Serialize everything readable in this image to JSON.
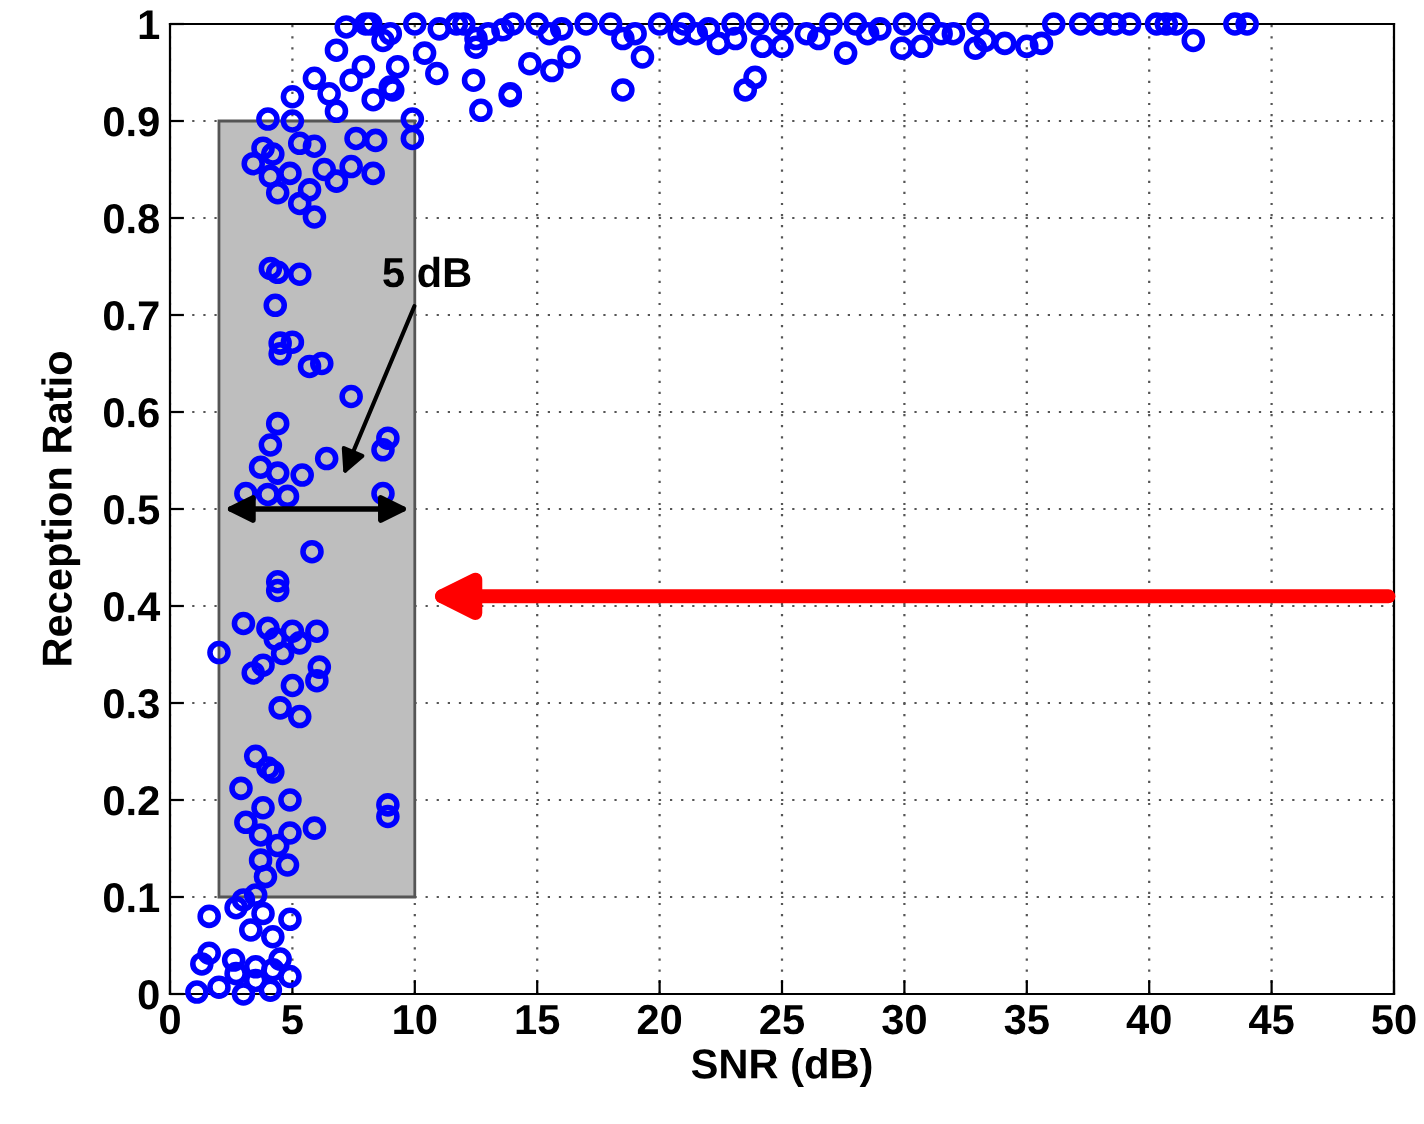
{
  "chart_data": {
    "type": "scatter",
    "xlabel": "SNR (dB)",
    "ylabel": "Reception Ratio",
    "xlim": [
      0,
      50
    ],
    "ylim": [
      0,
      1
    ],
    "xticks": [
      0,
      5,
      10,
      15,
      20,
      25,
      30,
      35,
      40,
      45,
      50
    ],
    "yticks": [
      0,
      0.1,
      0.2,
      0.3,
      0.4,
      0.5,
      0.6,
      0.7,
      0.8,
      0.9,
      1
    ],
    "grid": true,
    "marker": "circle",
    "bands": [
      {
        "axis": "x",
        "from": 2,
        "to": 10,
        "color": "#bebebe"
      }
    ],
    "annotations": [
      "5 dB"
    ],
    "series": [
      {
        "color": "#0000ff",
        "x": [
          36.1,
          37.2,
          38.0,
          38.6,
          39.2,
          40.3,
          40.7,
          41.1,
          43.5,
          44.0,
          41.8,
          32.9,
          35.0,
          35.6,
          34.1,
          33.3,
          29.9,
          30.7,
          27.6,
          25.0,
          24.2,
          23.5,
          23.9,
          22.4,
          23.1,
          18.5,
          19.3,
          13.9,
          14.7,
          15.6,
          16.3,
          20.8,
          8,
          9,
          10,
          11,
          12,
          13,
          14,
          15,
          16,
          17,
          18,
          19,
          20,
          21,
          22,
          23,
          24,
          25,
          26,
          27,
          28,
          29,
          30,
          31,
          32,
          33,
          12.5,
          15.5,
          18.5,
          21.5,
          26.5,
          28.5,
          31.5,
          7.2,
          8.2,
          6.8,
          5.9,
          5.0,
          4.0,
          9.9,
          9.9,
          5.0,
          6.8,
          8.3,
          9.1,
          3.8,
          3.4,
          4.2,
          5.3,
          5.9,
          4.9,
          4.4,
          5.7,
          5.3,
          5.9,
          6.3,
          6.8,
          7.4,
          8.3,
          8.4,
          7.6,
          4.1,
          4.1,
          4.4,
          5.3,
          4.3,
          4.5,
          5.0,
          4.5,
          5.7,
          6.2,
          7.4,
          4.4,
          4.1,
          8.9,
          8.7,
          6.4,
          3.7,
          4.4,
          5.4,
          3.1,
          4.0,
          4.8,
          8.7,
          5.8,
          4.4,
          4.4,
          3.0,
          4.0,
          5.0,
          6.0,
          2.0,
          4.3,
          5.3,
          4.6,
          3.8,
          3.4,
          6.1,
          6.0,
          5.0,
          4.5,
          5.3,
          3.5,
          4.0,
          4.2,
          2.9,
          4.9,
          3.8,
          8.9,
          8.9,
          3.1,
          3.7,
          4.9,
          5.9,
          4.4,
          3.7,
          4.8,
          3.9,
          3.0,
          3.5,
          2.7,
          1.6,
          3.8,
          4.9,
          3.3,
          4.2,
          1.6,
          1.3,
          2.6,
          4.5,
          3.5,
          4.9,
          1.1,
          2.0,
          3.0,
          4.1,
          3.5,
          2.7,
          4.2,
          8.7,
          9.3,
          10.4,
          10.9,
          11.7,
          12.5,
          12.4,
          12.7,
          13.9,
          13.6,
          7.4,
          7.9,
          6.5,
          9.0
        ],
        "values": [
          1,
          1,
          1,
          1,
          1,
          1,
          1,
          1,
          1,
          1,
          0.983,
          0.975,
          0.977,
          0.98,
          0.98,
          0.983,
          0.975,
          0.977,
          0.97,
          0.977,
          0.977,
          0.932,
          0.945,
          0.98,
          0.985,
          0.932,
          0.966,
          0.926,
          0.959,
          0.952,
          0.966,
          0.99,
          1,
          0.99,
          1,
          0.995,
          1,
          0.99,
          1,
          1,
          0.995,
          1,
          1,
          0.99,
          1,
          1,
          0.995,
          1,
          1,
          1,
          0.99,
          1,
          1,
          0.995,
          1,
          1,
          0.99,
          1,
          0.985,
          0.99,
          0.985,
          0.99,
          0.985,
          0.99,
          0.99,
          0.997,
          1.0,
          0.973,
          0.944,
          0.925,
          0.902,
          0.902,
          0.882,
          0.9,
          0.91,
          0.922,
          0.932,
          0.872,
          0.856,
          0.866,
          0.877,
          0.874,
          0.846,
          0.826,
          0.829,
          0.815,
          0.801,
          0.85,
          0.838,
          0.853,
          0.846,
          0.88,
          0.882,
          0.843,
          0.748,
          0.744,
          0.742,
          0.71,
          0.671,
          0.672,
          0.66,
          0.647,
          0.65,
          0.616,
          0.588,
          0.566,
          0.573,
          0.561,
          0.552,
          0.543,
          0.537,
          0.535,
          0.516,
          0.515,
          0.513,
          0.516,
          0.456,
          0.425,
          0.416,
          0.382,
          0.377,
          0.374,
          0.374,
          0.352,
          0.366,
          0.362,
          0.351,
          0.339,
          0.331,
          0.337,
          0.323,
          0.318,
          0.295,
          0.286,
          0.245,
          0.233,
          0.229,
          0.212,
          0.2,
          0.192,
          0.195,
          0.183,
          0.177,
          0.164,
          0.166,
          0.171,
          0.153,
          0.138,
          0.133,
          0.121,
          0.097,
          0.102,
          0.089,
          0.08,
          0.083,
          0.077,
          0.066,
          0.059,
          0.042,
          0.031,
          0.035,
          0.036,
          0.028,
          0.018,
          0.002,
          0.007,
          0,
          0.004,
          0.014,
          0.021,
          0.025,
          0.983,
          0.956,
          0.97,
          0.949,
          1,
          0.976,
          0.942,
          0.911,
          0.928,
          0.994,
          0.942,
          0.956,
          0.928,
          0.935
        ]
      }
    ]
  }
}
